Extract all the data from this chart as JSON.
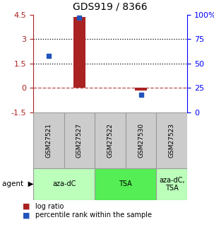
{
  "title": "GDS919 / 8366",
  "samples": [
    "GSM27521",
    "GSM27527",
    "GSM27522",
    "GSM27530",
    "GSM27523"
  ],
  "log_ratios": [
    0.0,
    4.35,
    0.0,
    -0.18,
    0.0
  ],
  "percentile_ranks_pct": [
    58,
    97,
    null,
    18,
    null
  ],
  "ylim_left": [
    -1.5,
    4.5
  ],
  "ylim_right": [
    0,
    100
  ],
  "yticks_left": [
    -1.5,
    0,
    1.5,
    3,
    4.5
  ],
  "yticks_right": [
    0,
    25,
    50,
    75,
    100
  ],
  "ytick_labels_left": [
    "-1.5",
    "0",
    "1.5",
    "3",
    "4.5"
  ],
  "ytick_labels_right": [
    "0",
    "25",
    "50",
    "75",
    "100%"
  ],
  "hlines_dotted": [
    1.5,
    3.0
  ],
  "hline_dashed": 0.0,
  "bar_color": "#aa2222",
  "dot_color": "#2255bb",
  "agent_groups": [
    {
      "label": "aza-dC",
      "columns": [
        0,
        1
      ],
      "color": "#bbffbb"
    },
    {
      "label": "TSA",
      "columns": [
        2,
        3
      ],
      "color": "#55ee55"
    },
    {
      "label": "aza-dC,\nTSA",
      "columns": [
        4
      ],
      "color": "#bbffbb"
    }
  ],
  "legend_items": [
    {
      "color": "#aa2222",
      "label": " log ratio"
    },
    {
      "color": "#2255bb",
      "label": " percentile rank within the sample"
    }
  ],
  "bar_width": 0.4,
  "sample_box_color": "#cccccc",
  "sample_box_edge": "#999999"
}
